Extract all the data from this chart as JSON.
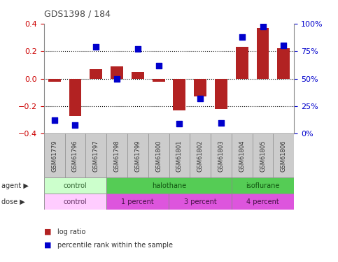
{
  "title": "GDS1398 / 184",
  "samples": [
    "GSM61779",
    "GSM61796",
    "GSM61797",
    "GSM61798",
    "GSM61799",
    "GSM61800",
    "GSM61801",
    "GSM61802",
    "GSM61803",
    "GSM61804",
    "GSM61805",
    "GSM61806"
  ],
  "log_ratio": [
    -0.02,
    -0.27,
    0.07,
    0.09,
    0.05,
    -0.02,
    -0.23,
    -0.13,
    -0.22,
    0.23,
    0.37,
    0.22
  ],
  "percentile_rank": [
    12,
    8,
    79,
    50,
    77,
    62,
    9,
    32,
    10,
    88,
    97,
    80
  ],
  "bar_color": "#b22222",
  "dot_color": "#0000cc",
  "ylim": [
    -0.4,
    0.4
  ],
  "yticks": [
    -0.4,
    -0.2,
    0.0,
    0.2,
    0.4
  ],
  "right_yticks": [
    0,
    25,
    50,
    75,
    100
  ],
  "right_yticklabels": [
    "0%",
    "25%",
    "50%",
    "75%",
    "100%"
  ],
  "tick_label_color_left": "#cc0000",
  "tick_label_color_right": "#0000cc",
  "bar_width": 0.6,
  "dot_size": 35,
  "bg_color": "#ffffff",
  "agents": [
    {
      "label": "control",
      "start": 0,
      "end": 3,
      "color": "#ccffcc"
    },
    {
      "label": "halothane",
      "start": 3,
      "end": 9,
      "color": "#55cc55"
    },
    {
      "label": "isoflurane",
      "start": 9,
      "end": 12,
      "color": "#55cc55"
    }
  ],
  "doses": [
    {
      "label": "control",
      "start": 0,
      "end": 3,
      "color": "#ffccff"
    },
    {
      "label": "1 percent",
      "start": 3,
      "end": 6,
      "color": "#dd55dd"
    },
    {
      "label": "3 percent",
      "start": 6,
      "end": 9,
      "color": "#dd55dd"
    },
    {
      "label": "4 percent",
      "start": 9,
      "end": 12,
      "color": "#dd55dd"
    }
  ],
  "agent_text_colors": [
    "#336633",
    "#115511",
    "#115511"
  ],
  "dose_text_colors": [
    "#663366",
    "#441144",
    "#441144",
    "#441144"
  ],
  "sample_bg": "#cccccc",
  "grid_color": "#000000",
  "spine_color": "#888888"
}
